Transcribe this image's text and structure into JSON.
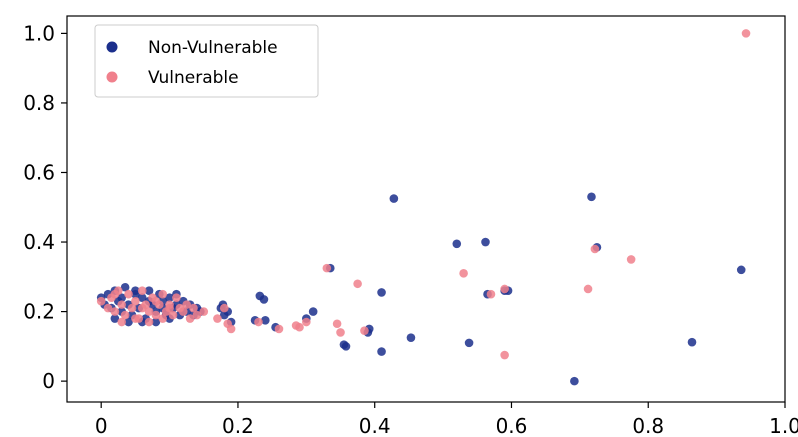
{
  "chart_data": {
    "type": "scatter",
    "title": "",
    "xlabel": "",
    "ylabel": "",
    "xlim": [
      -0.05,
      1.0
    ],
    "ylim": [
      -0.06,
      1.05
    ],
    "xticks": [
      0,
      0.2,
      0.4,
      0.6,
      0.8,
      1.0
    ],
    "xtick_labels": [
      "0",
      "0.2",
      "0.4",
      "0.6",
      "0.8",
      "1.0"
    ],
    "yticks": [
      0,
      0.2,
      0.4,
      0.6,
      0.8,
      1.0
    ],
    "ytick_labels": [
      "0",
      "0.2",
      "0.4",
      "0.6",
      "0.8",
      "1.0"
    ],
    "grid": false,
    "legend_position": "top-left",
    "series": [
      {
        "name": "Non-Vulnerable",
        "color": "#1b2f8c",
        "points": [
          [
            0.0,
            0.24
          ],
          [
            0.005,
            0.22
          ],
          [
            0.01,
            0.25
          ],
          [
            0.015,
            0.21
          ],
          [
            0.02,
            0.26
          ],
          [
            0.025,
            0.23
          ],
          [
            0.03,
            0.2
          ],
          [
            0.035,
            0.27
          ],
          [
            0.04,
            0.22
          ],
          [
            0.045,
            0.19
          ],
          [
            0.05,
            0.25
          ],
          [
            0.055,
            0.21
          ],
          [
            0.06,
            0.24
          ],
          [
            0.065,
            0.18
          ],
          [
            0.07,
            0.26
          ],
          [
            0.075,
            0.22
          ],
          [
            0.08,
            0.2
          ],
          [
            0.085,
            0.25
          ],
          [
            0.09,
            0.23
          ],
          [
            0.095,
            0.19
          ],
          [
            0.1,
            0.24
          ],
          [
            0.105,
            0.21
          ],
          [
            0.11,
            0.22
          ],
          [
            0.115,
            0.19
          ],
          [
            0.12,
            0.23
          ],
          [
            0.125,
            0.2
          ],
          [
            0.13,
            0.22
          ],
          [
            0.135,
            0.19
          ],
          [
            0.14,
            0.21
          ],
          [
            0.145,
            0.2
          ],
          [
            0.02,
            0.18
          ],
          [
            0.04,
            0.17
          ],
          [
            0.06,
            0.17
          ],
          [
            0.08,
            0.17
          ],
          [
            0.1,
            0.18
          ],
          [
            0.03,
            0.24
          ],
          [
            0.05,
            0.26
          ],
          [
            0.07,
            0.23
          ],
          [
            0.09,
            0.21
          ],
          [
            0.11,
            0.25
          ],
          [
            0.175,
            0.21
          ],
          [
            0.18,
            0.19
          ],
          [
            0.185,
            0.2
          ],
          [
            0.19,
            0.17
          ],
          [
            0.178,
            0.22
          ],
          [
            0.225,
            0.175
          ],
          [
            0.232,
            0.245
          ],
          [
            0.238,
            0.235
          ],
          [
            0.24,
            0.175
          ],
          [
            0.255,
            0.155
          ],
          [
            0.3,
            0.18
          ],
          [
            0.31,
            0.2
          ],
          [
            0.335,
            0.325
          ],
          [
            0.355,
            0.105
          ],
          [
            0.358,
            0.1
          ],
          [
            0.39,
            0.14
          ],
          [
            0.392,
            0.15
          ],
          [
            0.41,
            0.255
          ],
          [
            0.41,
            0.085
          ],
          [
            0.428,
            0.525
          ],
          [
            0.453,
            0.125
          ],
          [
            0.52,
            0.395
          ],
          [
            0.538,
            0.11
          ],
          [
            0.562,
            0.4
          ],
          [
            0.565,
            0.25
          ],
          [
            0.59,
            0.26
          ],
          [
            0.595,
            0.26
          ],
          [
            0.692,
            0.0
          ],
          [
            0.717,
            0.53
          ],
          [
            0.725,
            0.385
          ],
          [
            0.864,
            0.112
          ],
          [
            0.936,
            0.32
          ]
        ]
      },
      {
        "name": "Vulnerable",
        "color": "#f0808c",
        "points": [
          [
            0.0,
            0.23
          ],
          [
            0.01,
            0.21
          ],
          [
            0.015,
            0.24
          ],
          [
            0.02,
            0.2
          ],
          [
            0.025,
            0.26
          ],
          [
            0.03,
            0.22
          ],
          [
            0.035,
            0.19
          ],
          [
            0.04,
            0.25
          ],
          [
            0.045,
            0.21
          ],
          [
            0.05,
            0.23
          ],
          [
            0.055,
            0.18
          ],
          [
            0.06,
            0.26
          ],
          [
            0.065,
            0.22
          ],
          [
            0.07,
            0.2
          ],
          [
            0.075,
            0.24
          ],
          [
            0.08,
            0.19
          ],
          [
            0.085,
            0.22
          ],
          [
            0.09,
            0.25
          ],
          [
            0.095,
            0.2
          ],
          [
            0.1,
            0.22
          ],
          [
            0.105,
            0.19
          ],
          [
            0.11,
            0.24
          ],
          [
            0.115,
            0.21
          ],
          [
            0.12,
            0.2
          ],
          [
            0.125,
            0.22
          ],
          [
            0.13,
            0.18
          ],
          [
            0.135,
            0.21
          ],
          [
            0.14,
            0.19
          ],
          [
            0.15,
            0.2
          ],
          [
            0.03,
            0.17
          ],
          [
            0.05,
            0.18
          ],
          [
            0.07,
            0.17
          ],
          [
            0.09,
            0.18
          ],
          [
            0.02,
            0.25
          ],
          [
            0.06,
            0.21
          ],
          [
            0.08,
            0.23
          ],
          [
            0.1,
            0.21
          ],
          [
            0.17,
            0.18
          ],
          [
            0.18,
            0.21
          ],
          [
            0.185,
            0.165
          ],
          [
            0.19,
            0.15
          ],
          [
            0.23,
            0.17
          ],
          [
            0.26,
            0.15
          ],
          [
            0.285,
            0.16
          ],
          [
            0.29,
            0.155
          ],
          [
            0.3,
            0.17
          ],
          [
            0.33,
            0.325
          ],
          [
            0.345,
            0.165
          ],
          [
            0.35,
            0.14
          ],
          [
            0.375,
            0.28
          ],
          [
            0.385,
            0.145
          ],
          [
            0.53,
            0.31
          ],
          [
            0.57,
            0.25
          ],
          [
            0.59,
            0.265
          ],
          [
            0.59,
            0.075
          ],
          [
            0.712,
            0.265
          ],
          [
            0.722,
            0.38
          ],
          [
            0.775,
            0.35
          ],
          [
            0.943,
            1.0
          ]
        ]
      }
    ]
  }
}
